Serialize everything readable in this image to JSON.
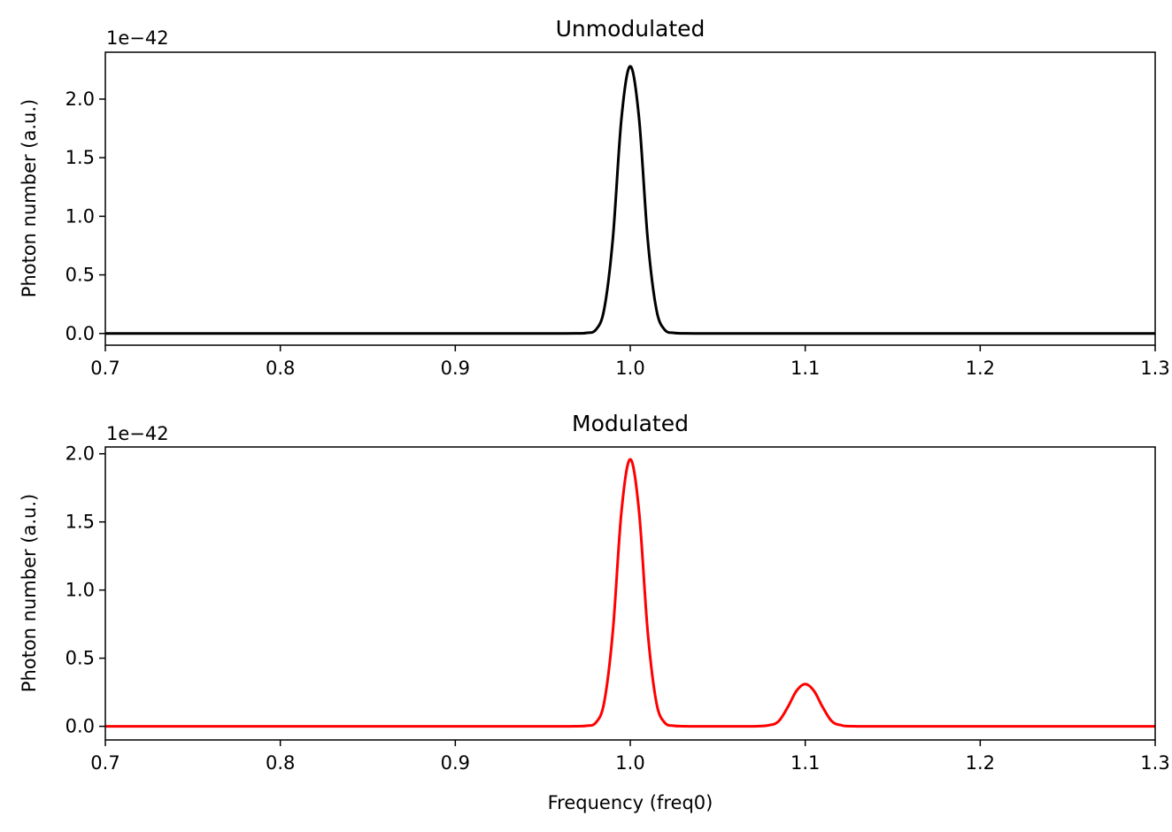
{
  "chart_data": [
    {
      "type": "line",
      "title": "Unmodulated",
      "xlabel": "",
      "ylabel": "Photon number (a.u.)",
      "offset_text": "1e−42",
      "xlim": [
        0.7,
        1.3
      ],
      "ylim": [
        -0.1,
        2.4
      ],
      "xticks": [
        0.7,
        0.8,
        0.9,
        1.0,
        1.1,
        1.2,
        1.3
      ],
      "xtick_labels": [
        "0.7",
        "0.8",
        "0.9",
        "1.0",
        "1.1",
        "1.2",
        "1.3"
      ],
      "yticks": [
        0.0,
        0.5,
        1.0,
        1.5,
        2.0
      ],
      "ytick_labels": [
        "0.0",
        "0.5",
        "1.0",
        "1.5",
        "2.0"
      ],
      "grid": false,
      "color": "#000000",
      "series": [
        {
          "x": [
            0.7,
            0.96,
            0.97,
            0.975,
            0.98,
            0.985,
            0.99,
            0.995,
            1.0,
            1.005,
            1.01,
            1.015,
            1.02,
            1.025,
            1.03,
            1.04,
            1.3
          ],
          "values": [
            0.0,
            0.0,
            0.001,
            0.005,
            0.026,
            0.2,
            0.8,
            1.84,
            2.28,
            1.84,
            0.8,
            0.2,
            0.026,
            0.005,
            0.001,
            0.0,
            0.0
          ]
        }
      ]
    },
    {
      "type": "line",
      "title": "Modulated",
      "xlabel": "Frequency (freq0)",
      "ylabel": "Photon number (a.u.)",
      "offset_text": "1e−42",
      "xlim": [
        0.7,
        1.3
      ],
      "ylim": [
        -0.1,
        2.05
      ],
      "xticks": [
        0.7,
        0.8,
        0.9,
        1.0,
        1.1,
        1.2,
        1.3
      ],
      "xtick_labels": [
        "0.7",
        "0.8",
        "0.9",
        "1.0",
        "1.1",
        "1.2",
        "1.3"
      ],
      "yticks": [
        0.0,
        0.5,
        1.0,
        1.5,
        2.0
      ],
      "ytick_labels": [
        "0.0",
        "0.5",
        "1.0",
        "1.5",
        "2.0"
      ],
      "grid": false,
      "color": "#ff0000",
      "series": [
        {
          "x": [
            0.7,
            0.96,
            0.97,
            0.975,
            0.98,
            0.985,
            0.99,
            0.995,
            1.0,
            1.005,
            1.01,
            1.015,
            1.02,
            1.025,
            1.03,
            1.04,
            1.07,
            1.08,
            1.085,
            1.09,
            1.095,
            1.1,
            1.105,
            1.11,
            1.115,
            1.12,
            1.13,
            1.3
          ],
          "values": [
            0.0,
            0.0,
            0.001,
            0.004,
            0.022,
            0.17,
            0.69,
            1.58,
            1.96,
            1.58,
            0.69,
            0.17,
            0.022,
            0.004,
            0.001,
            0.0,
            0.0,
            0.01,
            0.04,
            0.14,
            0.26,
            0.31,
            0.26,
            0.14,
            0.04,
            0.01,
            0.0,
            0.0
          ]
        }
      ]
    }
  ]
}
